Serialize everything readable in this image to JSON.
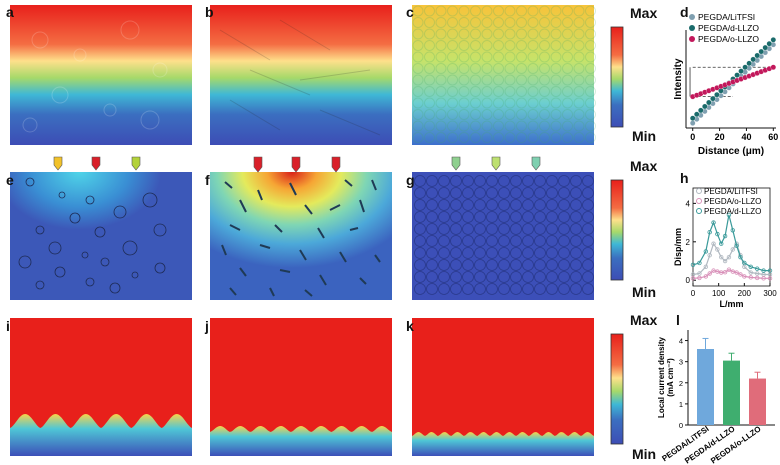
{
  "panel_labels": [
    "a",
    "b",
    "c",
    "d",
    "e",
    "f",
    "g",
    "h",
    "i",
    "j",
    "k",
    "l"
  ],
  "colorbar": {
    "max_label": "Max",
    "min_label": "Min"
  },
  "chart_data": [
    {
      "id": "d",
      "type": "scatter",
      "xlabel": "Distance (μm)",
      "ylabel": "Intensity",
      "xlim": [
        -5,
        62
      ],
      "xticks": [
        0,
        20,
        40,
        60
      ],
      "series": [
        {
          "name": "PEGDA/LiTFSI",
          "color": "#7f9fb0",
          "x": [
            0,
            3,
            6,
            9,
            12,
            15,
            18,
            21,
            24,
            27,
            30,
            33,
            36,
            39,
            42,
            45,
            48,
            51,
            54,
            57,
            60
          ],
          "y": [
            0.05,
            0.09,
            0.13,
            0.17,
            0.21,
            0.25,
            0.29,
            0.33,
            0.37,
            0.41,
            0.45,
            0.49,
            0.53,
            0.57,
            0.61,
            0.65,
            0.69,
            0.73,
            0.77,
            0.81,
            0.85
          ]
        },
        {
          "name": "PEGDA/d-LLZO",
          "color": "#1a6b6b",
          "x": [
            0,
            3,
            6,
            9,
            12,
            15,
            18,
            21,
            24,
            27,
            30,
            33,
            36,
            39,
            42,
            45,
            48,
            51,
            54,
            57,
            60
          ],
          "y": [
            0.1,
            0.14,
            0.18,
            0.22,
            0.26,
            0.3,
            0.34,
            0.38,
            0.42,
            0.46,
            0.5,
            0.54,
            0.58,
            0.62,
            0.66,
            0.7,
            0.74,
            0.78,
            0.82,
            0.86,
            0.9
          ]
        },
        {
          "name": "PEGDA/o-LLZO",
          "color": "#c2185b",
          "x": [
            0,
            3,
            6,
            9,
            12,
            15,
            18,
            21,
            24,
            27,
            30,
            33,
            36,
            39,
            42,
            45,
            48,
            51,
            54,
            57,
            60
          ],
          "y": [
            0.32,
            0.335,
            0.35,
            0.365,
            0.38,
            0.395,
            0.41,
            0.425,
            0.44,
            0.455,
            0.47,
            0.485,
            0.5,
            0.515,
            0.53,
            0.545,
            0.56,
            0.575,
            0.59,
            0.605,
            0.62
          ]
        }
      ]
    },
    {
      "id": "h",
      "type": "line",
      "xlabel": "L/mm",
      "ylabel": "Disp/mm",
      "xlim": [
        0,
        300
      ],
      "ylim": [
        -0.3,
        4.8
      ],
      "xticks": [
        0,
        100,
        200,
        300
      ],
      "yticks": [
        0,
        2,
        4
      ],
      "series": [
        {
          "name": "PEGDA/LiTFSI",
          "color": "#b0b8c0",
          "x": [
            0,
            25,
            50,
            65,
            80,
            95,
            110,
            125,
            140,
            155,
            170,
            185,
            200,
            225,
            250,
            275,
            300
          ],
          "y": [
            0.3,
            0.35,
            0.7,
            1.3,
            1.9,
            1.6,
            1.2,
            1.0,
            1.2,
            1.6,
            1.9,
            1.3,
            0.7,
            0.4,
            0.35,
            0.3,
            0.3
          ]
        },
        {
          "name": "PEGDA/o-LLZO",
          "color": "#d88fb8",
          "x": [
            0,
            25,
            50,
            65,
            80,
            95,
            110,
            125,
            140,
            155,
            170,
            185,
            200,
            225,
            250,
            275,
            300
          ],
          "y": [
            0.1,
            0.12,
            0.2,
            0.35,
            0.5,
            0.45,
            0.4,
            0.42,
            0.55,
            0.45,
            0.4,
            0.3,
            0.2,
            0.15,
            0.12,
            0.1,
            0.1
          ]
        },
        {
          "name": "PEGDA/d-LLZO",
          "color": "#3a9a9a",
          "x": [
            0,
            25,
            50,
            65,
            80,
            95,
            110,
            125,
            140,
            155,
            170,
            185,
            200,
            225,
            250,
            275,
            300
          ],
          "y": [
            0.8,
            0.9,
            1.5,
            2.5,
            3.0,
            2.4,
            1.9,
            2.3,
            3.4,
            2.6,
            1.8,
            1.2,
            0.9,
            0.7,
            0.6,
            0.5,
            0.5
          ]
        }
      ]
    },
    {
      "id": "l",
      "type": "bar",
      "ylabel": "Local current density\n(mA cm⁻²)",
      "categories": [
        "PEGDA/LiTFSI",
        "PEGDA/d-LLZO",
        "PEGDA/o-LLZO"
      ],
      "values": [
        3.6,
        3.05,
        2.2
      ],
      "errors": [
        0.5,
        0.35,
        0.3
      ],
      "colors": [
        "#6fa8dc",
        "#3fae6f",
        "#e06c7a"
      ],
      "ylim": [
        0,
        4.5
      ],
      "yticks": [
        0,
        1,
        2,
        3,
        4
      ]
    }
  ]
}
